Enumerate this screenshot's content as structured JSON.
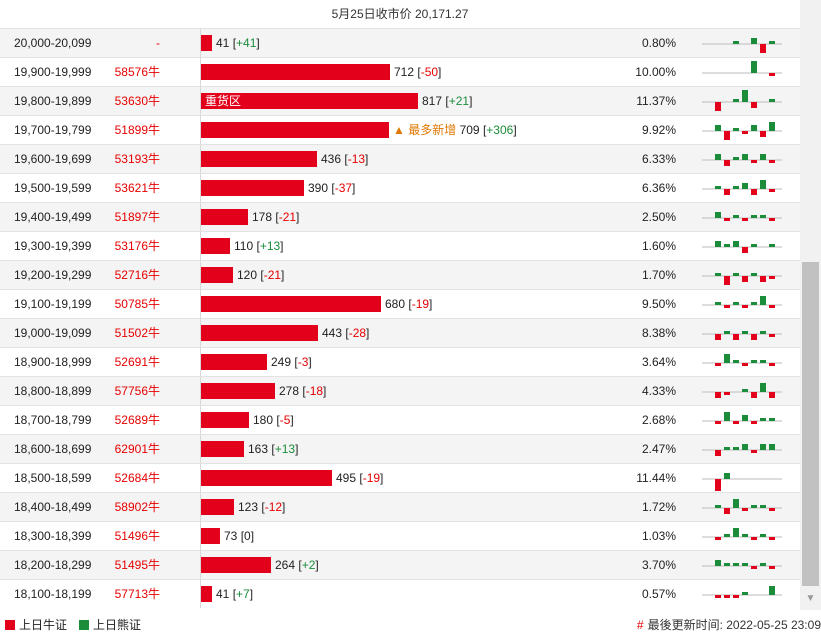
{
  "title": "5月25日收市价 20,171.27",
  "colors": {
    "bull": "#e3001b",
    "bear": "#1a8c3a"
  },
  "rows": [
    {
      "range": "20,000-20,099",
      "price": "-",
      "count": 41,
      "change": "+41",
      "pct": "0.80%",
      "spark": [
        0,
        0,
        0,
        1,
        0,
        2,
        -3,
        1
      ]
    },
    {
      "range": "19,900-19,999",
      "price": "58576牛",
      "count": 712,
      "change": "-50",
      "pct": "10.00%",
      "spark": [
        0,
        0,
        0,
        0,
        0,
        4,
        0,
        -1
      ]
    },
    {
      "range": "19,800-19,899",
      "price": "53630牛",
      "count": 817,
      "change": "+21",
      "pct": "11.37%",
      "label": "重货区",
      "spark": [
        0,
        -3,
        0,
        1,
        4,
        -2,
        0,
        1
      ]
    },
    {
      "range": "19,700-19,799",
      "price": "51899牛",
      "count": 709,
      "change": "+306",
      "pct": "9.92%",
      "note": "最多新增",
      "spark": [
        0,
        2,
        -3,
        1,
        -1,
        2,
        -2,
        3
      ]
    },
    {
      "range": "19,600-19,699",
      "price": "53193牛",
      "count": 436,
      "change": "-13",
      "pct": "6.33%",
      "spark": [
        0,
        2,
        -2,
        1,
        2,
        -1,
        2,
        -1
      ]
    },
    {
      "range": "19,500-19,599",
      "price": "53621牛",
      "count": 390,
      "change": "-37",
      "pct": "6.36%",
      "spark": [
        0,
        1,
        -2,
        1,
        2,
        -2,
        3,
        -1
      ]
    },
    {
      "range": "19,400-19,499",
      "price": "51897牛",
      "count": 178,
      "change": "-21",
      "pct": "2.50%",
      "spark": [
        0,
        2,
        -1,
        1,
        -1,
        1,
        1,
        -1
      ]
    },
    {
      "range": "19,300-19,399",
      "price": "53176牛",
      "count": 110,
      "change": "+13",
      "pct": "1.60%",
      "spark": [
        0,
        2,
        1,
        2,
        -2,
        1,
        0,
        1
      ]
    },
    {
      "range": "19,200-19,299",
      "price": "52716牛",
      "count": 120,
      "change": "-21",
      "pct": "1.70%",
      "spark": [
        0,
        1,
        -3,
        1,
        -2,
        1,
        -2,
        -1
      ]
    },
    {
      "range": "19,100-19,199",
      "price": "50785牛",
      "count": 680,
      "change": "-19",
      "pct": "9.50%",
      "spark": [
        0,
        1,
        -1,
        1,
        -1,
        1,
        3,
        -1
      ]
    },
    {
      "range": "19,000-19,099",
      "price": "51502牛",
      "count": 443,
      "change": "-28",
      "pct": "8.38%",
      "spark": [
        0,
        -2,
        1,
        -2,
        1,
        -2,
        1,
        -1
      ]
    },
    {
      "range": "18,900-18,999",
      "price": "52691牛",
      "count": 249,
      "change": "-3",
      "pct": "3.64%",
      "spark": [
        0,
        -1,
        3,
        1,
        -1,
        1,
        1,
        -1
      ]
    },
    {
      "range": "18,800-18,899",
      "price": "57756牛",
      "count": 278,
      "change": "-18",
      "pct": "4.33%",
      "spark": [
        0,
        -2,
        -1,
        0,
        1,
        -2,
        3,
        -2
      ]
    },
    {
      "range": "18,700-18,799",
      "price": "52689牛",
      "count": 180,
      "change": "-5",
      "pct": "2.68%",
      "spark": [
        0,
        -1,
        3,
        -1,
        2,
        -1,
        1,
        1
      ]
    },
    {
      "range": "18,600-18,699",
      "price": "62901牛",
      "count": 163,
      "change": "+13",
      "pct": "2.47%",
      "spark": [
        0,
        -2,
        1,
        1,
        2,
        -1,
        2,
        2
      ]
    },
    {
      "range": "18,500-18,599",
      "price": "52684牛",
      "count": 495,
      "change": "-19",
      "pct": "11.44%",
      "spark": [
        0,
        -6,
        2,
        0,
        0,
        0,
        0,
        0
      ]
    },
    {
      "range": "18,400-18,499",
      "price": "58902牛",
      "count": 123,
      "change": "-12",
      "pct": "1.72%",
      "spark": [
        0,
        1,
        -2,
        3,
        -1,
        1,
        1,
        -1
      ]
    },
    {
      "range": "18,300-18,399",
      "price": "51496牛",
      "count": 73,
      "change": "0",
      "pct": "1.03%",
      "spark": [
        0,
        -1,
        1,
        3,
        1,
        -1,
        1,
        -1
      ]
    },
    {
      "range": "18,200-18,299",
      "price": "51495牛",
      "count": 264,
      "change": "+2",
      "pct": "3.70%",
      "spark": [
        0,
        2,
        1,
        1,
        1,
        -1,
        1,
        -1
      ]
    },
    {
      "range": "18,100-18,199",
      "price": "57713牛",
      "count": 41,
      "change": "+7",
      "pct": "0.57%",
      "spark": [
        0,
        -1,
        -1,
        -1,
        1,
        0,
        0,
        3
      ]
    }
  ],
  "legend": {
    "bull": "上日牛证",
    "bear": "上日熊证"
  },
  "updated": {
    "hash": "#",
    "text": "最後更新时间: 2022-05-25 23:09"
  }
}
